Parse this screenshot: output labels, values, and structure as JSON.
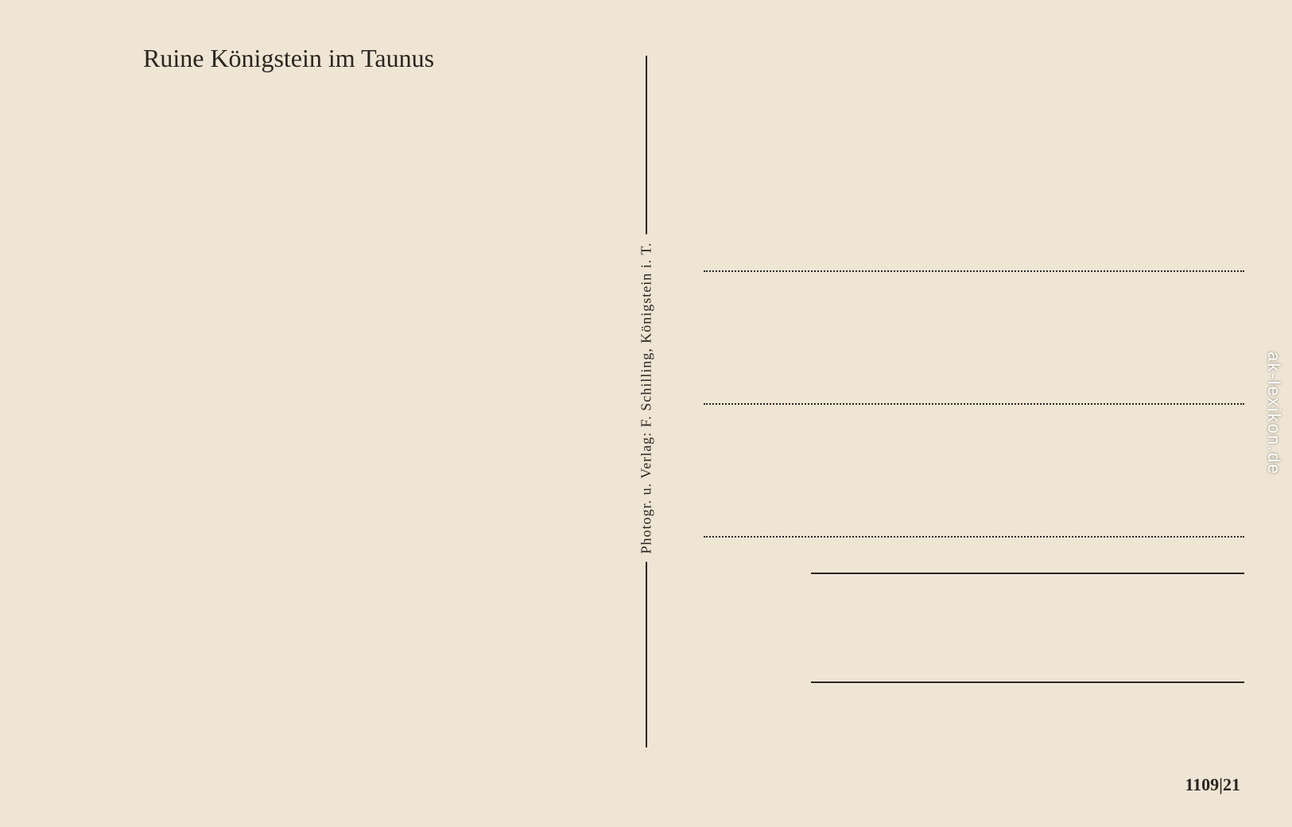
{
  "postcard": {
    "title": "Ruine Königstein im Taunus",
    "publisher": "Photogr. u. Verlag: F. Schilling, Königstein i. T.",
    "card_number": "1109|21",
    "watermark": "ak-lexikon.de",
    "background_color": "#efe5d4",
    "text_color": "#2a2520",
    "title_fontsize": 32,
    "publisher_fontsize": 18,
    "number_fontsize": 22,
    "layout": {
      "divider_position": "center",
      "address_lines_count": 3,
      "solid_lines_count": 2,
      "address_line_style": "dotted",
      "solid_line_style": "solid"
    }
  }
}
